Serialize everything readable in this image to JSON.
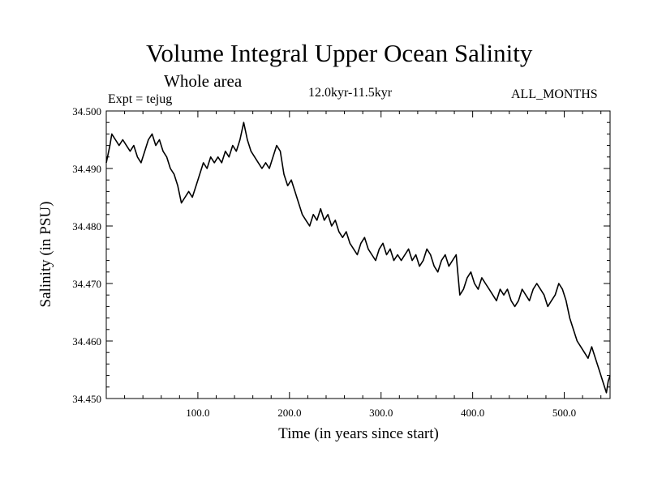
{
  "chart_data": {
    "type": "line",
    "title": "Volume Integral Upper Ocean Salinity",
    "subtitle": "Whole area",
    "experiment_label": "Expt = tejug",
    "period_label": "12.0kyr-11.5kyr",
    "months_label": "ALL_MONTHS",
    "xlabel": "Time (in years since start)",
    "ylabel": "Salinity (in PSU)",
    "xlim": [
      0,
      550
    ],
    "ylim": [
      34.45,
      34.5
    ],
    "xticks": [
      100,
      200,
      300,
      400,
      500
    ],
    "xtick_labels": [
      "100.0",
      "200.0",
      "300.0",
      "400.0",
      "500.0"
    ],
    "yticks": [
      34.45,
      34.46,
      34.47,
      34.48,
      34.49,
      34.5
    ],
    "ytick_labels": [
      "34.450",
      "34.460",
      "34.470",
      "34.480",
      "34.490",
      "34.500"
    ],
    "grid": false,
    "series": [
      {
        "name": "Salinity",
        "color": "#000000",
        "x": [
          0,
          4,
          6,
          10,
          14,
          18,
          22,
          26,
          30,
          34,
          38,
          42,
          46,
          50,
          54,
          58,
          62,
          66,
          70,
          74,
          78,
          82,
          86,
          90,
          94,
          98,
          102,
          106,
          110,
          114,
          118,
          122,
          126,
          130,
          134,
          138,
          142,
          146,
          150,
          154,
          158,
          162,
          166,
          170,
          174,
          178,
          182,
          186,
          190,
          194,
          198,
          202,
          206,
          210,
          214,
          218,
          222,
          226,
          230,
          234,
          238,
          242,
          246,
          250,
          254,
          258,
          262,
          266,
          270,
          274,
          278,
          282,
          286,
          290,
          294,
          298,
          302,
          306,
          310,
          314,
          318,
          322,
          326,
          330,
          334,
          338,
          342,
          346,
          350,
          354,
          358,
          362,
          366,
          370,
          374,
          378,
          382,
          386,
          390,
          394,
          398,
          402,
          406,
          410,
          414,
          418,
          422,
          426,
          430,
          434,
          438,
          442,
          446,
          450,
          454,
          458,
          462,
          466,
          470,
          474,
          478,
          482,
          486,
          490,
          494,
          498,
          502,
          506,
          510,
          514,
          518,
          522,
          526,
          530,
          534,
          538,
          542,
          546,
          548,
          550
        ],
        "values": [
          34.491,
          34.494,
          34.496,
          34.495,
          34.494,
          34.495,
          34.494,
          34.493,
          34.494,
          34.492,
          34.491,
          34.493,
          34.495,
          34.496,
          34.494,
          34.495,
          34.493,
          34.492,
          34.49,
          34.489,
          34.487,
          34.484,
          34.485,
          34.486,
          34.485,
          34.487,
          34.489,
          34.491,
          34.49,
          34.492,
          34.491,
          34.492,
          34.491,
          34.493,
          34.492,
          34.494,
          34.493,
          34.495,
          34.498,
          34.495,
          34.493,
          34.492,
          34.491,
          34.49,
          34.491,
          34.49,
          34.492,
          34.494,
          34.493,
          34.489,
          34.487,
          34.488,
          34.486,
          34.484,
          34.482,
          34.481,
          34.48,
          34.482,
          34.481,
          34.483,
          34.481,
          34.482,
          34.48,
          34.481,
          34.479,
          34.478,
          34.479,
          34.477,
          34.476,
          34.475,
          34.477,
          34.478,
          34.476,
          34.475,
          34.474,
          34.476,
          34.477,
          34.475,
          34.476,
          34.474,
          34.475,
          34.474,
          34.475,
          34.476,
          34.474,
          34.475,
          34.473,
          34.474,
          34.476,
          34.475,
          34.473,
          34.472,
          34.474,
          34.475,
          34.473,
          34.474,
          34.475,
          34.468,
          34.469,
          34.471,
          34.472,
          34.47,
          34.469,
          34.471,
          34.47,
          34.469,
          34.468,
          34.467,
          34.469,
          34.468,
          34.469,
          34.467,
          34.466,
          34.467,
          34.469,
          34.468,
          34.467,
          34.469,
          34.47,
          34.469,
          34.468,
          34.466,
          34.467,
          34.468,
          34.47,
          34.469,
          34.467,
          34.464,
          34.462,
          34.46,
          34.459,
          34.458,
          34.457,
          34.459,
          34.457,
          34.455,
          34.453,
          34.451,
          34.453,
          34.454
        ]
      }
    ]
  }
}
